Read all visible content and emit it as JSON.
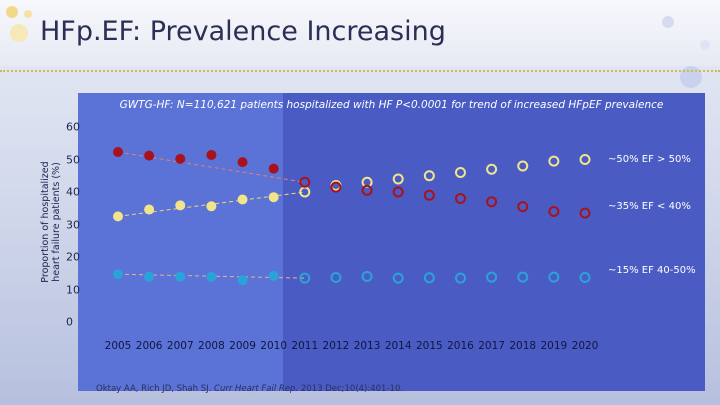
{
  "slide": {
    "title": "HFp.EF: Prevalence Increasing",
    "citation_authors": "Oktay AA, Rich JD, Shah SJ. ",
    "citation_journal": "Curr Heart Fail Rep.",
    "citation_details": " 2013 Dec;10(4):401-10."
  },
  "colors": {
    "gt50_fill": "#f2e48c",
    "lt40_fill": "#a8121d",
    "mid_fill": "#2aa3d8",
    "dashed_gt50": "#f0d870",
    "dashed_lt40": "#e08070",
    "dashed_mid": "#e2b48a",
    "panel_left": "#5b72d6",
    "panel_right": "#4a5cc4"
  },
  "chart_data": {
    "type": "scatter",
    "title": "GWTG-HF: N=110,621 patients hospitalized with HF P<0.0001 for trend of increased HFpEF prevalence",
    "ylabel_line1": "Proportion of hospitalized",
    "ylabel_line2": "heart failure patients (%)",
    "xlabel": "",
    "ylim": [
      0,
      60
    ],
    "yticks": [
      0,
      10,
      20,
      30,
      40,
      50,
      60
    ],
    "x": [
      2005,
      2006,
      2007,
      2008,
      2009,
      2010,
      2011,
      2012,
      2013,
      2014,
      2015,
      2016,
      2017,
      2018,
      2019,
      2020
    ],
    "grid": false,
    "annotations": {
      "gt50": "~50% EF > 50%",
      "lt40": "~35% EF < 40%",
      "mid": "~15% EF 40-50%"
    },
    "series": [
      {
        "name": "EF > 50%",
        "key": "gt50",
        "filled_x": [
          2005,
          2006,
          2007,
          2008,
          2009,
          2010
        ],
        "filled_values": [
          32.5,
          34.6,
          35.9,
          35.6,
          37.7,
          38.4
        ],
        "projected_x": [
          2011,
          2012,
          2013,
          2014,
          2015,
          2016,
          2017,
          2018,
          2019,
          2020
        ],
        "projected_values": [
          40,
          42,
          43,
          44,
          45,
          46,
          47,
          48,
          49.5,
          50
        ]
      },
      {
        "name": "EF < 40%",
        "key": "lt40",
        "filled_x": [
          2005,
          2006,
          2007,
          2008,
          2009,
          2010
        ],
        "filled_values": [
          52.3,
          51.2,
          50.2,
          51.4,
          49.2,
          47.2
        ],
        "projected_x": [
          2011,
          2012,
          2013,
          2014,
          2015,
          2016,
          2017,
          2018,
          2019,
          2020
        ],
        "projected_values": [
          43,
          41.5,
          40.5,
          40,
          39,
          38,
          37,
          35.5,
          34,
          33.5
        ]
      },
      {
        "name": "EF 40-50%",
        "key": "mid",
        "filled_x": [
          2005,
          2006,
          2007,
          2008,
          2009,
          2010
        ],
        "filled_values": [
          14.7,
          13.9,
          13.9,
          13.9,
          12.9,
          14.2
        ],
        "projected_x": [
          2011,
          2012,
          2013,
          2014,
          2015,
          2016,
          2017,
          2018,
          2019,
          2020
        ],
        "projected_values": [
          13.5,
          13.7,
          14,
          13.5,
          13.6,
          13.5,
          13.8,
          13.8,
          13.8,
          13.7
        ]
      }
    ],
    "trend_lines": [
      {
        "key": "gt50",
        "from": [
          2005,
          32.5
        ],
        "to": [
          2011,
          40
        ]
      },
      {
        "key": "lt40",
        "from": [
          2005,
          52.3
        ],
        "to": [
          2011,
          43
        ]
      },
      {
        "key": "mid",
        "from": [
          2005,
          14.7
        ],
        "to": [
          2011,
          13.5
        ]
      }
    ]
  }
}
